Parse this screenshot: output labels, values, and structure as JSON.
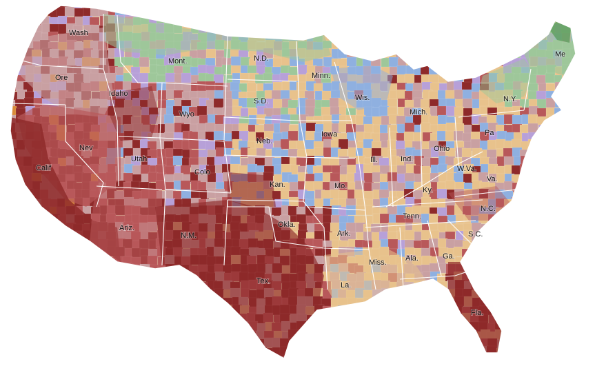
{
  "map": {
    "palette": {
      "dark_red": "#8e2a2a",
      "red": "#b8585a",
      "pink": "#c9a0a2",
      "tan": "#e8c28c",
      "blue": "#8fb0e0",
      "green": "#9ec79a",
      "dark_green": "#5a9a5a",
      "purple": "#b7a0d8",
      "orange": "#d98a3a",
      "land": "#e4cfa8",
      "state_border": "#ffffff"
    },
    "state_labels": [
      "Wash",
      "Ore",
      "Idaho",
      "Mont.",
      "N.D.",
      "Minn.",
      "Wyo",
      "S.D.",
      "Wis.",
      "Mich.",
      "N.Y.",
      "Me",
      "Nev",
      "Utah",
      "Colo",
      "Neb.",
      "Iowa",
      "Ill.",
      "Ind.",
      "Ohio",
      "Pa",
      "Calif",
      "Kan.",
      "Mo.",
      "W.Va.",
      "Va.",
      "Ky.",
      "Tenn.",
      "N.C.",
      "Ariz.",
      "N.M.",
      "Okla.",
      "Ark.",
      "S.C.",
      "Miss.",
      "Ala.",
      "Ga.",
      "Tex.",
      "La.",
      "Fla."
    ]
  }
}
